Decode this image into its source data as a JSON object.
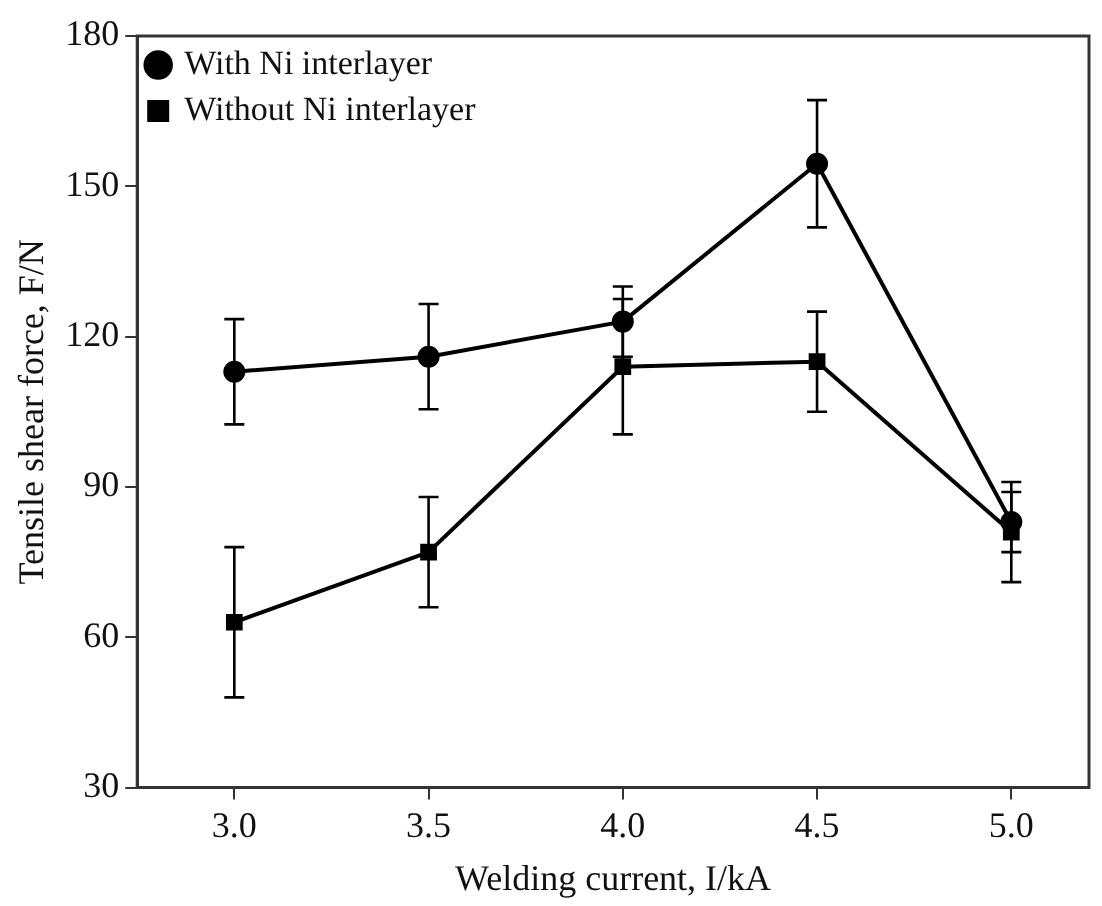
{
  "chart_data": {
    "type": "line",
    "xlabel": "Welding current, I/kA",
    "ylabel": "Tensile shear force, F/N",
    "x": [
      3.0,
      3.5,
      4.0,
      4.5,
      5.0
    ],
    "series": [
      {
        "name": "With Ni interlayer",
        "color": "#000000",
        "marker": "circle",
        "values": [
          113,
          116,
          123,
          154.5,
          83
        ],
        "errors": [
          10.5,
          10.5,
          7,
          12.7,
          6
        ]
      },
      {
        "name": "Without Ni interlayer",
        "color": "#000000",
        "marker": "square",
        "values": [
          63,
          77,
          114,
          115,
          81
        ],
        "errors": [
          15,
          11,
          13.5,
          10,
          10
        ]
      }
    ],
    "xlim": [
      2.75,
      5.2
    ],
    "xticks": [
      {
        "value": 3.0,
        "label": "3.0"
      },
      {
        "value": 3.5,
        "label": "3.5"
      },
      {
        "value": 4.0,
        "label": "4.0"
      },
      {
        "value": 4.5,
        "label": "4.5"
      },
      {
        "value": 5.0,
        "label": "5.0"
      }
    ],
    "ylim": [
      30,
      180
    ],
    "yticks": [
      30,
      60,
      90,
      120,
      150,
      180
    ],
    "legend": "top left",
    "grid": false,
    "line_style": "solid"
  }
}
